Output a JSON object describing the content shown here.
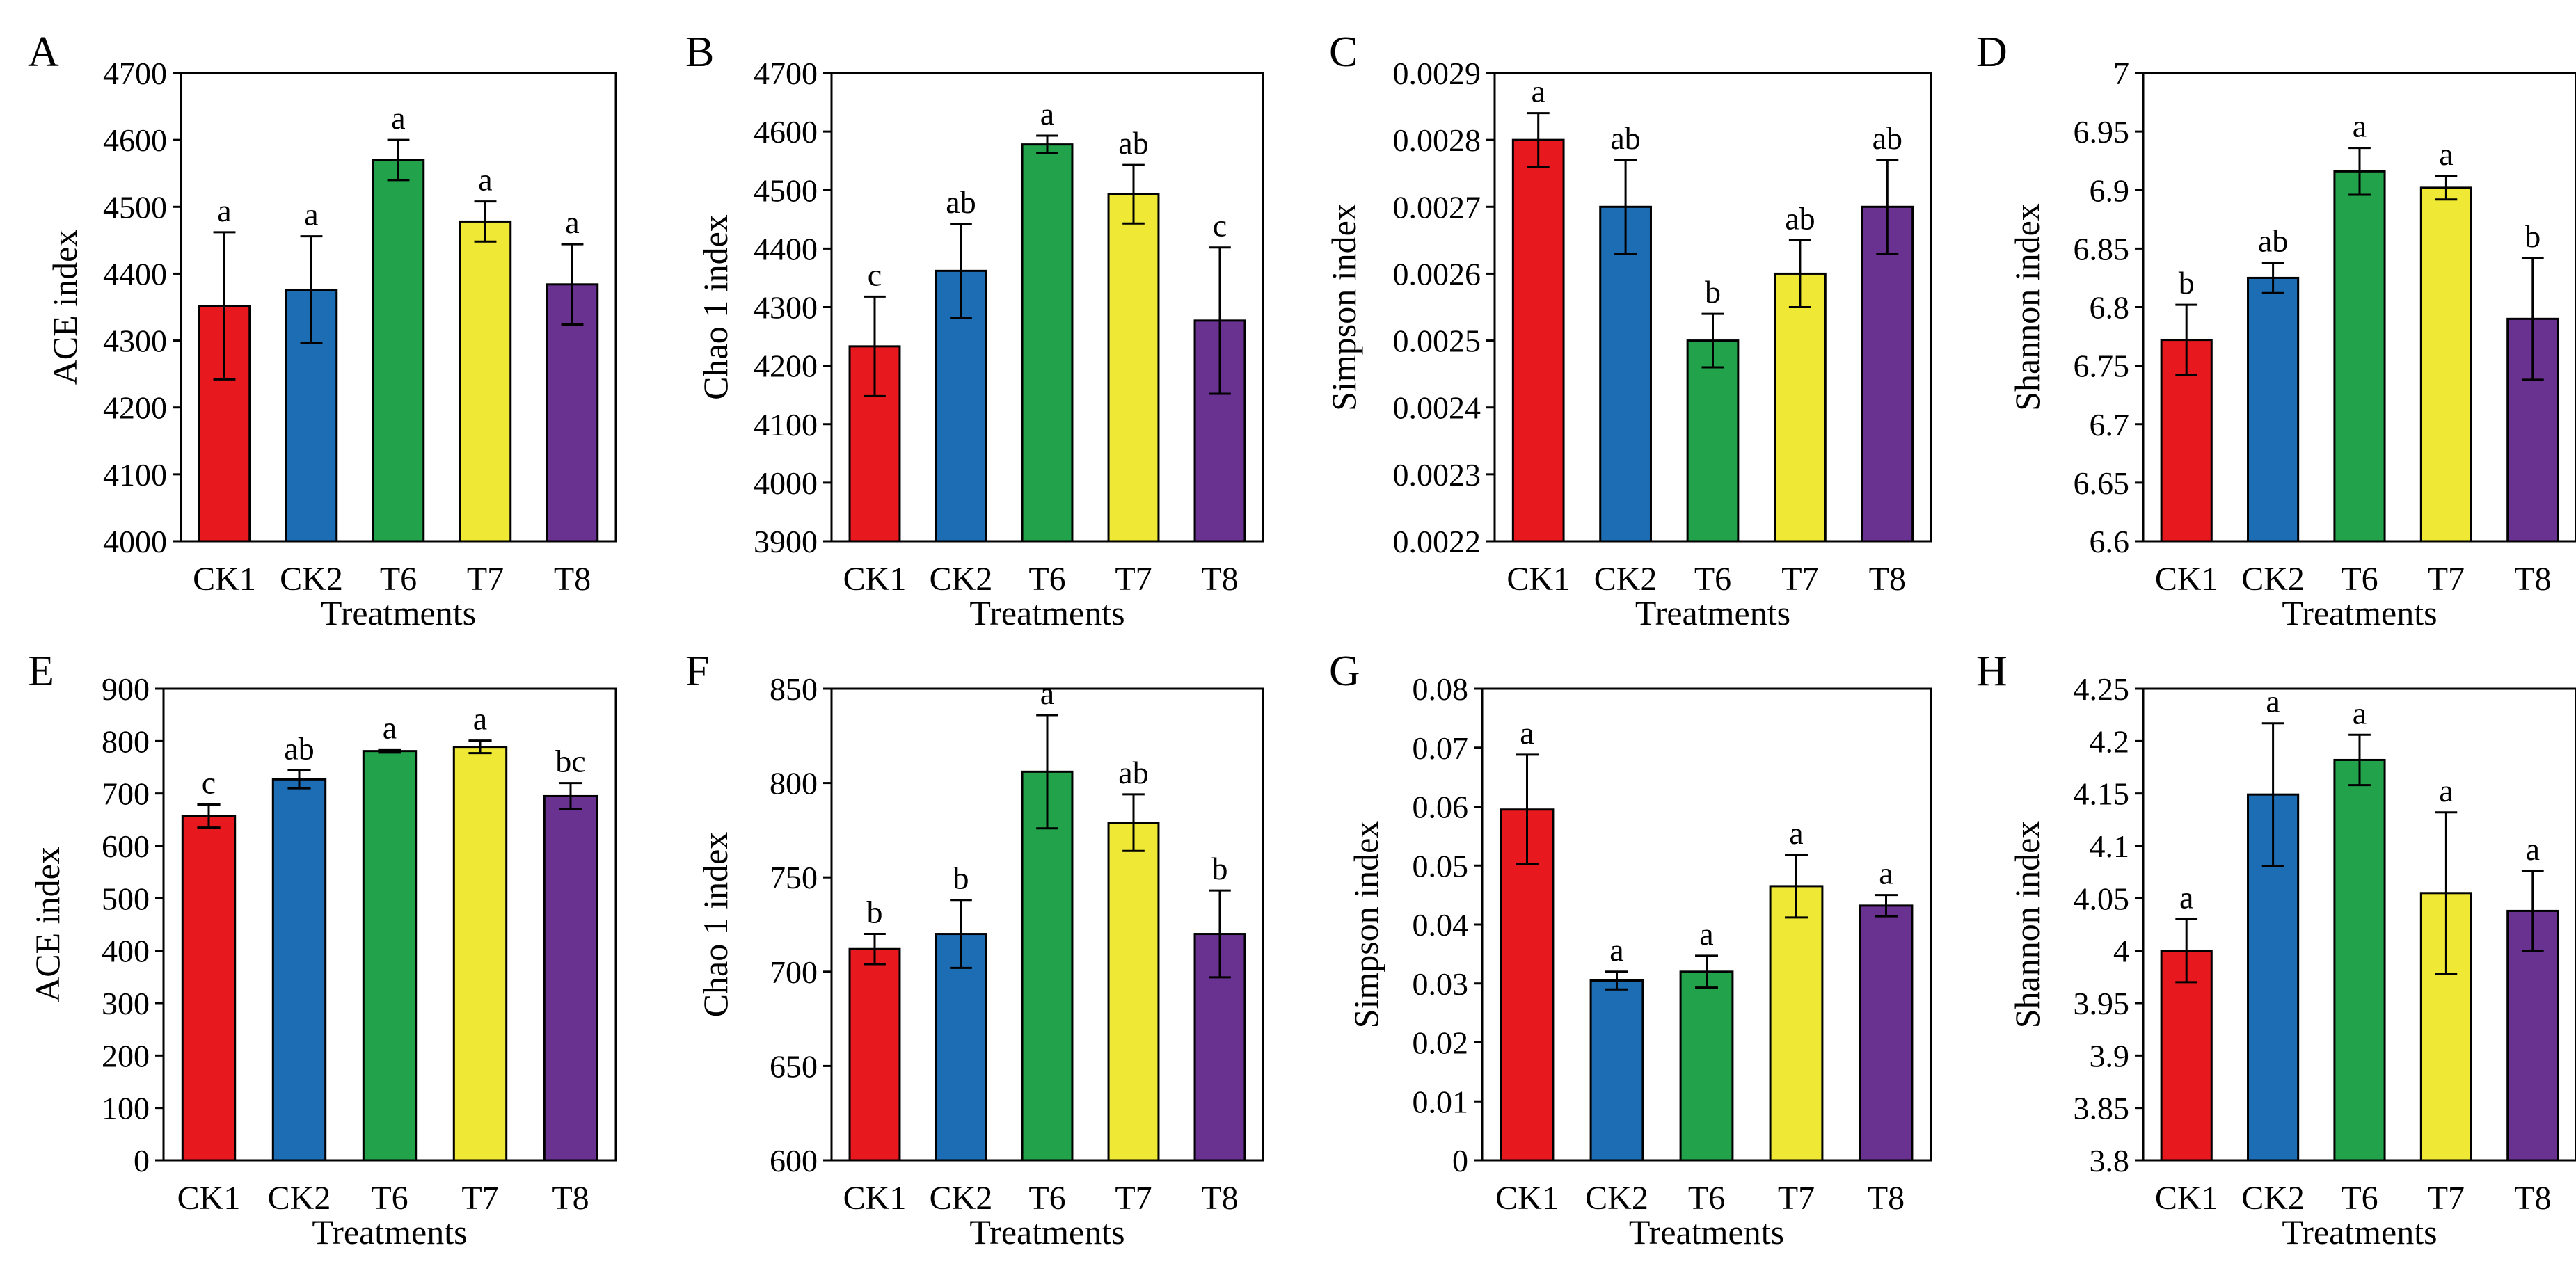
{
  "colors": {
    "CK1": "#e8191e",
    "CK2": "#1d6db5",
    "T6": "#22a24a",
    "T7": "#efe935",
    "T8": "#6a3290",
    "axis": "#000000"
  },
  "chart_data": [
    {
      "panel": "A",
      "type": "bar",
      "xlabel": "Treatments",
      "ylabel": "ACE index",
      "categories": [
        "CK1",
        "CK2",
        "T6",
        "T7",
        "T8"
      ],
      "values": [
        4352,
        4376,
        4570,
        4478,
        4384
      ],
      "errors": [
        110,
        80,
        30,
        30,
        60
      ],
      "letters": [
        "a",
        "a",
        "a",
        "a",
        "a"
      ],
      "ylim": [
        4000,
        4700
      ],
      "ticks": [
        "4000",
        "4100",
        "4200",
        "4300",
        "4400",
        "4500",
        "4600",
        "4700"
      ]
    },
    {
      "panel": "B",
      "type": "bar",
      "xlabel": "Treatments",
      "ylabel": "Chao 1 index",
      "categories": [
        "CK1",
        "CK2",
        "T6",
        "T7",
        "T8"
      ],
      "values": [
        4233,
        4362,
        4578,
        4493,
        4277
      ],
      "errors": [
        85,
        80,
        15,
        50,
        125
      ],
      "letters": [
        "c",
        "ab",
        "a",
        "ab",
        "c"
      ],
      "ylim": [
        3900,
        4700
      ],
      "ticks": [
        "3900",
        "4000",
        "4100",
        "4200",
        "4300",
        "4400",
        "4500",
        "4600",
        "4700"
      ]
    },
    {
      "panel": "C",
      "type": "bar",
      "xlabel": "Treatments",
      "ylabel": "Simpson index",
      "categories": [
        "CK1",
        "CK2",
        "T6",
        "T7",
        "T8"
      ],
      "values": [
        0.0028,
        0.0027,
        0.0025,
        0.0026,
        0.0027
      ],
      "errors": [
        4e-05,
        7e-05,
        4e-05,
        5e-05,
        7e-05
      ],
      "letters": [
        "a",
        "ab",
        "b",
        "ab",
        "ab"
      ],
      "ylim": [
        0.0022,
        0.0029
      ],
      "ticks": [
        "0.0022",
        "0.0023",
        "0.0024",
        "0.0025",
        "0.0026",
        "0.0027",
        "0.0028",
        "0.0029"
      ]
    },
    {
      "panel": "D",
      "type": "bar",
      "xlabel": "Treatments",
      "ylabel": "Shannon index",
      "categories": [
        "CK1",
        "CK2",
        "T6",
        "T7",
        "T8"
      ],
      "values": [
        6.772,
        6.825,
        6.916,
        6.902,
        6.79
      ],
      "errors": [
        0.03,
        0.013,
        0.02,
        0.01,
        0.052
      ],
      "letters": [
        "b",
        "ab",
        "a",
        "a",
        "b"
      ],
      "ylim": [
        6.6,
        7.0
      ],
      "ticks": [
        "6.6",
        "6.65",
        "6.7",
        "6.75",
        "6.8",
        "6.85",
        "6.9",
        "6.95",
        "7"
      ]
    },
    {
      "panel": "E",
      "type": "bar",
      "xlabel": "Treatments",
      "ylabel": "ACE index",
      "categories": [
        "CK1",
        "CK2",
        "T6",
        "T7",
        "T8"
      ],
      "values": [
        657,
        727,
        781,
        789,
        695
      ],
      "errors": [
        22,
        17,
        3,
        12,
        25
      ],
      "letters": [
        "c",
        "ab",
        "a",
        "a",
        "bc"
      ],
      "ylim": [
        0,
        900
      ],
      "ticks": [
        "0",
        "100",
        "200",
        "300",
        "400",
        "500",
        "600",
        "700",
        "800",
        "900"
      ]
    },
    {
      "panel": "F",
      "type": "bar",
      "xlabel": "Treatments",
      "ylabel": "Chao 1 index",
      "categories": [
        "CK1",
        "CK2",
        "T6",
        "T7",
        "T8"
      ],
      "values": [
        712,
        720,
        806,
        779,
        720
      ],
      "errors": [
        8,
        18,
        30,
        15,
        23
      ],
      "letters": [
        "b",
        "b",
        "a",
        "ab",
        "b"
      ],
      "ylim": [
        600,
        850
      ],
      "ticks": [
        "600",
        "650",
        "700",
        "750",
        "800",
        "850"
      ]
    },
    {
      "panel": "G",
      "type": "bar",
      "xlabel": "Treatments",
      "ylabel": "Simpson index",
      "categories": [
        "CK1",
        "CK2",
        "T6",
        "T7",
        "T8"
      ],
      "values": [
        0.0595,
        0.0305,
        0.032,
        0.0465,
        0.0432
      ],
      "errors": [
        0.0093,
        0.0015,
        0.0027,
        0.0053,
        0.0018
      ],
      "letters": [
        "a",
        "a",
        "a",
        "a",
        "a"
      ],
      "ylim": [
        0,
        0.08
      ],
      "ticks": [
        "0",
        "0.01",
        "0.02",
        "0.03",
        "0.04",
        "0.05",
        "0.06",
        "0.07",
        "0.08"
      ]
    },
    {
      "panel": "H",
      "type": "bar",
      "xlabel": "Treatments",
      "ylabel": "Shannon index",
      "categories": [
        "CK1",
        "CK2",
        "T6",
        "T7",
        "T8"
      ],
      "values": [
        4.0,
        4.149,
        4.182,
        4.055,
        4.038
      ],
      "errors": [
        0.03,
        0.068,
        0.024,
        0.077,
        0.038
      ],
      "letters": [
        "a",
        "a",
        "a",
        "a",
        "a"
      ],
      "ylim": [
        3.8,
        4.25
      ],
      "ticks": [
        "3.8",
        "3.85",
        "3.9",
        "3.95",
        "4",
        "4.05",
        "4.1",
        "4.15",
        "4.2",
        "4.25"
      ]
    }
  ]
}
